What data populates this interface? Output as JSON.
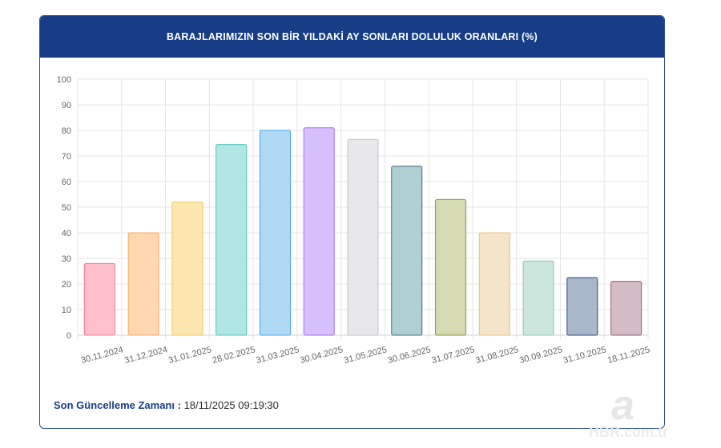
{
  "header": {
    "title": "BARAJLARIMIZIN SON BİR YILDAKİ AY SONLARI DOLULUK ORANLARI (%)"
  },
  "footer": {
    "label": "Son Güncelleme Zamanı :",
    "value": "18/11/2025 09:19:30"
  },
  "watermark": {
    "logo_letter": "a",
    "text": "HBR.com.tr"
  },
  "chart_data": {
    "type": "bar",
    "title": "BARAJLARIMIZIN SON BİR YILDAKİ AY SONLARI DOLULUK ORANLARI (%)",
    "xlabel": "",
    "ylabel": "",
    "ylim": [
      0,
      100
    ],
    "yticks": [
      0,
      10,
      20,
      30,
      40,
      50,
      60,
      70,
      80,
      90,
      100
    ],
    "grid": true,
    "categories": [
      "30.11.2024",
      "31.12.2024",
      "31.01.2025",
      "28.02.2025",
      "31.03.2025",
      "30.04.2025",
      "31.05.2025",
      "30.06.2025",
      "31.07.2025",
      "31.08.2025",
      "30.09.2025",
      "31.10.2025",
      "18.11.2025"
    ],
    "values": [
      28,
      40,
      52,
      74.5,
      80,
      81,
      76.5,
      66,
      53,
      40,
      29,
      22.5,
      21
    ],
    "fill_colors": [
      "#ffc0cc",
      "#ffd8b0",
      "#fde7b0",
      "#b0e6e4",
      "#b0d9f6",
      "#d6c0fc",
      "#e8e8ea",
      "#b0cfd3",
      "#d5dab3",
      "#f4e5c8",
      "#cce5dd",
      "#a9b7cb",
      "#d3bcc5"
    ],
    "border_colors": [
      "#f07892",
      "#f4a860",
      "#f2c85c",
      "#52c4bd",
      "#42a6e8",
      "#9a6ef0",
      "#c6c6cc",
      "#406f75",
      "#8a963a",
      "#e6c47c",
      "#8ec6b2",
      "#2f4a7c",
      "#8e5f70"
    ]
  }
}
